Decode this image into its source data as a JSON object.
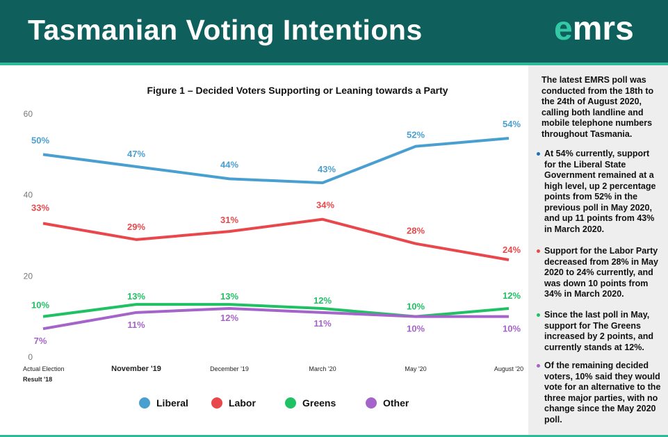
{
  "header": {
    "title": "Tasmanian Voting Intentions",
    "logo_e": "e",
    "logo_rest": "mrs"
  },
  "colors": {
    "header_bg": "#0f5f5c",
    "accent": "#2fb89a"
  },
  "chart_data": {
    "type": "line",
    "title": "Figure 1 – Decided Voters Supporting or Leaning towards a Party",
    "categories": [
      "Actual Election Result '18",
      "November '19",
      "December '19",
      "March '20",
      "May '20",
      "August '20"
    ],
    "category_lines": [
      [
        "Actual Election",
        "Result '18"
      ],
      [
        "November '19"
      ],
      [
        "December '19"
      ],
      [
        "March '20"
      ],
      [
        "May '20"
      ],
      [
        "August '20"
      ]
    ],
    "ylim": [
      0,
      60
    ],
    "yticks": [
      "0",
      "20",
      "40",
      "60"
    ],
    "ytick_values": [
      0,
      20,
      40,
      60
    ],
    "grid": false,
    "legend_position": "bottom",
    "series": [
      {
        "name": "Liberal",
        "color": "#4a9fd1",
        "values": [
          50,
          47,
          44,
          43,
          52,
          54
        ],
        "labels": [
          "50%",
          "47%",
          "44%",
          "43%",
          "52%",
          "54%"
        ]
      },
      {
        "name": "Labor",
        "color": "#e8484b",
        "values": [
          33,
          29,
          31,
          34,
          28,
          24
        ],
        "labels": [
          "33%",
          "29%",
          "31%",
          "34%",
          "28%",
          "24%"
        ]
      },
      {
        "name": "Greens",
        "color": "#20c165",
        "values": [
          10,
          13,
          13,
          12,
          10,
          12
        ],
        "labels": [
          "10%",
          "13%",
          "13%",
          "12%",
          "10%",
          "12%"
        ]
      },
      {
        "name": "Other",
        "color": "#a564c9",
        "values": [
          7,
          11,
          12,
          11,
          10,
          10
        ],
        "labels": [
          "7%",
          "11%",
          "12%",
          "11%",
          "10%",
          "10%"
        ]
      }
    ]
  },
  "side": {
    "intro": "The latest EMRS poll was conducted from the 18th to the 24th of August 2020, calling both landline and mobile telephone numbers throughout Tasmania.",
    "bullets": [
      {
        "color": "#1f6fb5",
        "text": "At 54% currently, support for the Liberal State Government remained at a high level, up 2 percentage points from 52% in the previous poll in May 2020, and up 11 points from 43% in March 2020."
      },
      {
        "color": "#e8484b",
        "text": "Support for the Labor Party decreased from 28% in May 2020 to 24% currently, and was down 10 points from 34% in March 2020."
      },
      {
        "color": "#20c165",
        "text": "Since the last poll in May, support for The Greens increased by 2 points, and currently stands at 12%."
      },
      {
        "color": "#a564c9",
        "text": "Of the remaining decided voters, 10% said they would vote for an alternative to the three major parties, with no change since the May 2020 poll."
      }
    ]
  }
}
